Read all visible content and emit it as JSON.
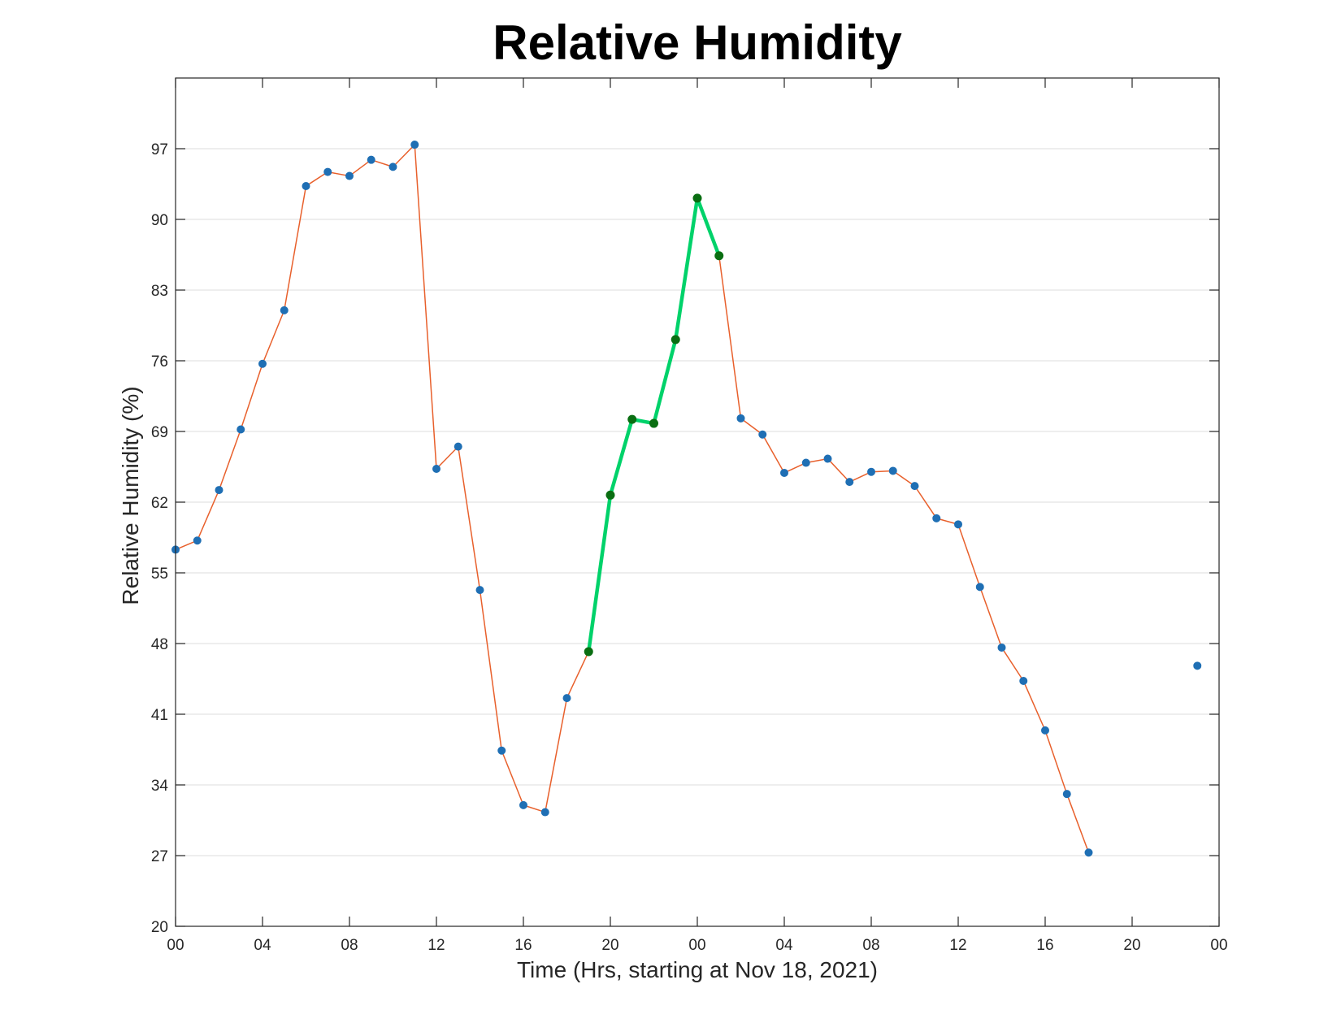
{
  "chart_data": {
    "type": "line",
    "title": "Relative Humidity",
    "xlabel": "Time (Hrs, starting at Nov 18, 2021)",
    "ylabel": "Relative Humidity (%)",
    "xlim": [
      0,
      48
    ],
    "ylim": [
      20,
      104
    ],
    "x_ticks": [
      {
        "value": 0,
        "label": "00"
      },
      {
        "value": 4,
        "label": "04"
      },
      {
        "value": 8,
        "label": "08"
      },
      {
        "value": 12,
        "label": "12"
      },
      {
        "value": 16,
        "label": "16"
      },
      {
        "value": 20,
        "label": "20"
      },
      {
        "value": 24,
        "label": "00"
      },
      {
        "value": 28,
        "label": "04"
      },
      {
        "value": 32,
        "label": "08"
      },
      {
        "value": 36,
        "label": "12"
      },
      {
        "value": 40,
        "label": "16"
      },
      {
        "value": 44,
        "label": "20"
      },
      {
        "value": 48,
        "label": "00"
      }
    ],
    "y_ticks": [
      {
        "value": 20,
        "label": "20"
      },
      {
        "value": 27,
        "label": "27"
      },
      {
        "value": 34,
        "label": "34"
      },
      {
        "value": 41,
        "label": "41"
      },
      {
        "value": 48,
        "label": "48"
      },
      {
        "value": 55,
        "label": "55"
      },
      {
        "value": 62,
        "label": "62"
      },
      {
        "value": 69,
        "label": "69"
      },
      {
        "value": 76,
        "label": "76"
      },
      {
        "value": 83,
        "label": "83"
      },
      {
        "value": 90,
        "label": "90"
      },
      {
        "value": 97,
        "label": "97"
      }
    ],
    "grid": "horizontal",
    "legend": "none",
    "colors": {
      "main_line": "#e8602c",
      "main_marker": "#1f6fb4",
      "highlight_line": "#00d26a",
      "highlight_marker": "#0a6e12",
      "axis": "#262626",
      "grid": "#e3e3e3"
    },
    "series": [
      {
        "line_color": "#e8602c",
        "marker_color": "#1f6fb4",
        "line_width": 1.5,
        "x": [
          0,
          1,
          2,
          3,
          4,
          5,
          6,
          7,
          8,
          9,
          10,
          11,
          12,
          13,
          14,
          15,
          16,
          17,
          18,
          19,
          20,
          21,
          22,
          23,
          24,
          25,
          26,
          27,
          28,
          29,
          30,
          31,
          32,
          33,
          34,
          35,
          36,
          37,
          38,
          39,
          40,
          41,
          42
        ],
        "y": [
          57.3,
          58.2,
          63.2,
          69.2,
          75.7,
          81.0,
          93.3,
          94.7,
          94.3,
          95.9,
          95.2,
          97.4,
          65.3,
          67.5,
          53.3,
          37.4,
          32.0,
          31.3,
          42.6,
          47.2,
          62.7,
          70.2,
          69.8,
          78.1,
          92.1,
          86.4,
          70.3,
          68.7,
          64.9,
          65.9,
          66.3,
          64.0,
          65.0,
          65.1,
          63.6,
          60.4,
          59.8,
          53.6,
          47.6,
          44.3,
          39.4,
          33.1,
          27.3
        ]
      },
      {
        "line_color": "#00d26a",
        "marker_color": "#0a6e12",
        "line_width": 4.5,
        "x": [
          19,
          20,
          21,
          22,
          23,
          24,
          25
        ],
        "y": [
          47.2,
          62.7,
          70.2,
          69.8,
          78.1,
          92.1,
          86.4
        ]
      },
      {
        "line_color": "none",
        "marker_color": "#1f6fb4",
        "line_width": 0,
        "x": [
          47
        ],
        "y": [
          45.8
        ]
      }
    ]
  }
}
